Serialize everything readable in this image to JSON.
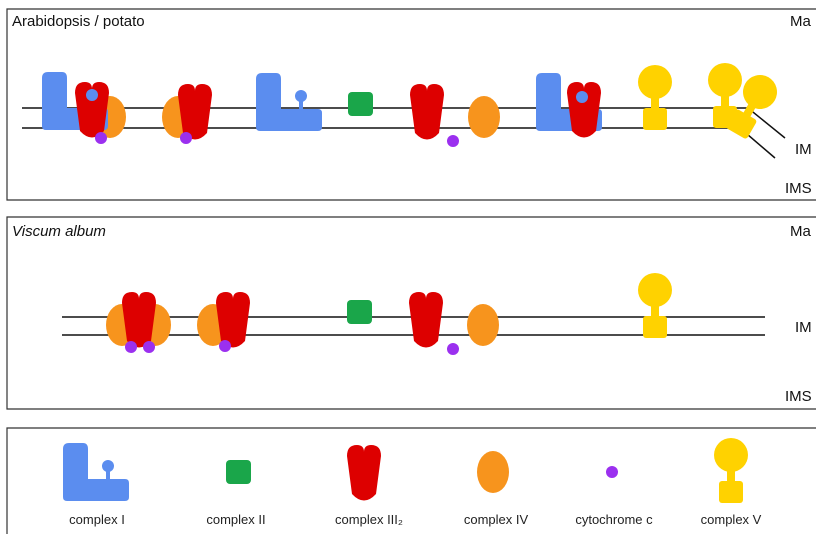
{
  "panels": [
    {
      "title": "Arabidopsis / potato",
      "matrix_label": "Ma",
      "membrane_label": "IM",
      "ims_label": "IMS"
    },
    {
      "title": "Viscum album",
      "matrix_label": "Ma",
      "membrane_label": "IM",
      "ims_label": "IMS"
    }
  ],
  "legend": {
    "items": [
      {
        "label": "complex I"
      },
      {
        "label": "complex II"
      },
      {
        "label": "complex III₂"
      },
      {
        "label": "complex IV"
      },
      {
        "label": "cytochrome c"
      },
      {
        "label": "complex V"
      }
    ]
  }
}
